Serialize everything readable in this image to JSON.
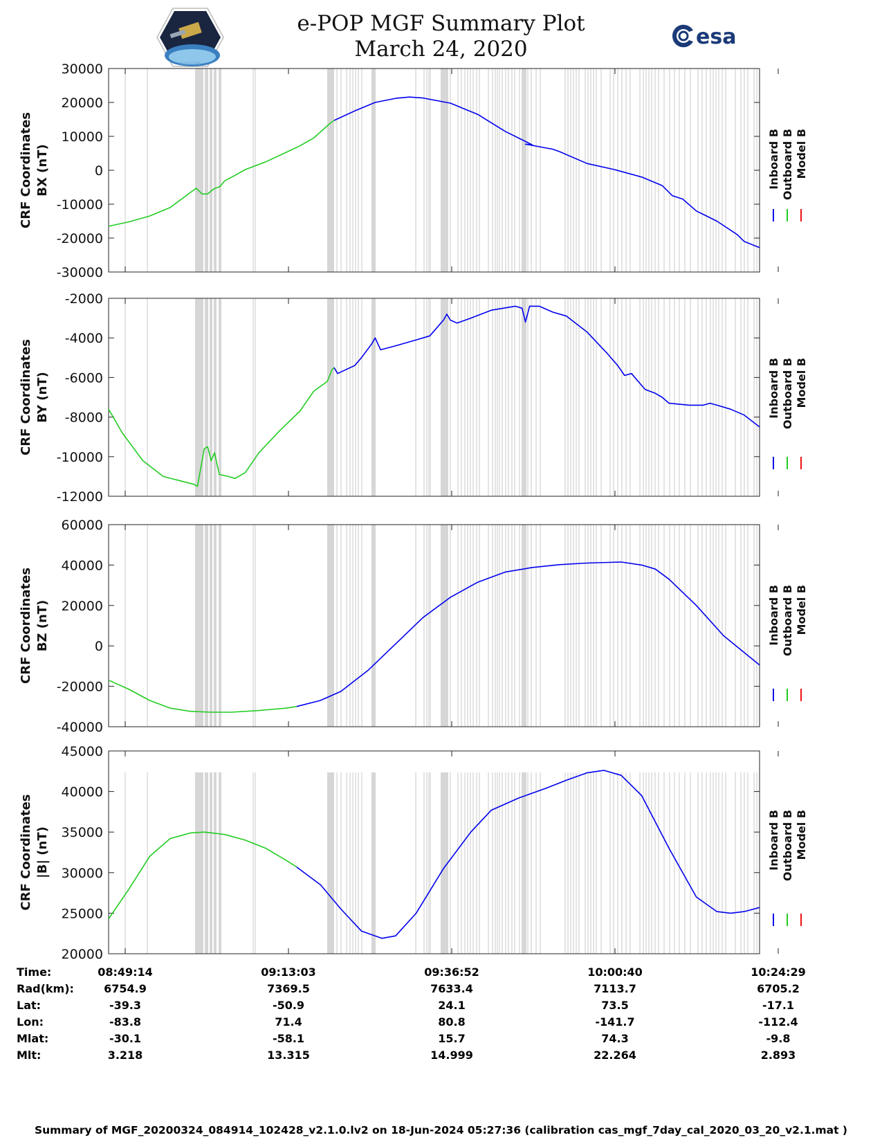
{
  "header": {
    "title_line1": "e-POP MGF Summary Plot",
    "title_line2": "March 24, 2020",
    "left_logo_caption": "CASSIOPE",
    "right_logo_text": "esa"
  },
  "legend": {
    "entries": [
      {
        "name": "Inboard B",
        "color": "#0000ee"
      },
      {
        "name": "Outboard B",
        "color": "#22cc22"
      },
      {
        "name": "Model B",
        "color": "#ee1111"
      }
    ]
  },
  "chart_data": [
    {
      "type": "line",
      "ylabel_line1": "CRF Coordinates",
      "ylabel_line2": "BX (nT)",
      "ylim": [
        -30000,
        30000
      ],
      "yticks": [
        -30000,
        -20000,
        -10000,
        0,
        10000,
        20000,
        30000
      ],
      "ytick_labels": [
        "-30000",
        "-20000",
        "-10000",
        "0",
        "10000",
        "20000",
        "30000"
      ],
      "xlim_minutes": [
        0,
        95.25
      ],
      "series": [
        {
          "name": "Outboard B",
          "color": "#22cc22",
          "points": [
            [
              0,
              -16500
            ],
            [
              3,
              -15200
            ],
            [
              6,
              -13500
            ],
            [
              9,
              -11000
            ],
            [
              12.8,
              -5300
            ],
            [
              13.7,
              -7000
            ],
            [
              14.5,
              -7000
            ],
            [
              15.4,
              -5500
            ],
            [
              16.3,
              -4800
            ],
            [
              17,
              -3100
            ],
            [
              18.5,
              -1500
            ],
            [
              20,
              200
            ],
            [
              23,
              2500
            ],
            [
              26,
              5300
            ],
            [
              28,
              7200
            ],
            [
              30,
              9500
            ],
            [
              32.5,
              14000
            ],
            [
              33,
              14700
            ]
          ]
        },
        {
          "name": "Inboard B",
          "color": "#0000ee",
          "points": [
            [
              33,
              14700
            ],
            [
              36,
              17500
            ],
            [
              39,
              20000
            ],
            [
              42,
              21200
            ],
            [
              44,
              21600
            ],
            [
              46,
              21300
            ],
            [
              50,
              19800
            ],
            [
              54,
              16500
            ],
            [
              58,
              11500
            ],
            [
              62,
              7500
            ],
            [
              61,
              7700
            ],
            [
              65,
              6200
            ],
            [
              66,
              5500
            ],
            [
              70,
              2000
            ],
            [
              74,
              200
            ],
            [
              78,
              -2000
            ],
            [
              81,
              -4500
            ],
            [
              82.5,
              -7500
            ],
            [
              84,
              -8500
            ],
            [
              86,
              -12000
            ],
            [
              89,
              -15000
            ],
            [
              92,
              -19000
            ],
            [
              93,
              -21000
            ],
            [
              95.25,
              -22800
            ]
          ]
        }
      ]
    },
    {
      "type": "line",
      "ylabel_line1": "CRF Coordinates",
      "ylabel_line2": "BY (nT)",
      "ylim": [
        -12000,
        -2000
      ],
      "yticks": [
        -12000,
        -10000,
        -8000,
        -6000,
        -4000,
        -2000
      ],
      "ytick_labels": [
        "-12000",
        "-10000",
        "-8000",
        "-6000",
        "-4000",
        "-2000"
      ],
      "xlim_minutes": [
        0,
        95.25
      ],
      "series": [
        {
          "name": "Outboard B",
          "color": "#22cc22",
          "points": [
            [
              0,
              -7600
            ],
            [
              2,
              -8800
            ],
            [
              5,
              -10200
            ],
            [
              8,
              -11000
            ],
            [
              12.5,
              -11400
            ],
            [
              13,
              -11500
            ],
            [
              14,
              -9600
            ],
            [
              14.5,
              -9500
            ],
            [
              15,
              -10200
            ],
            [
              15.5,
              -9800
            ],
            [
              16.2,
              -10900
            ],
            [
              17.5,
              -11000
            ],
            [
              18.5,
              -11100
            ],
            [
              20,
              -10800
            ],
            [
              22,
              -9800
            ],
            [
              25,
              -8700
            ],
            [
              28,
              -7700
            ],
            [
              30,
              -6700
            ],
            [
              32,
              -6200
            ],
            [
              32.7,
              -5600
            ],
            [
              33,
              -5500
            ]
          ]
        },
        {
          "name": "Inboard B",
          "color": "#0000ee",
          "points": [
            [
              33,
              -5500
            ],
            [
              33.5,
              -5800
            ],
            [
              36,
              -5400
            ],
            [
              37,
              -5000
            ],
            [
              38.5,
              -4300
            ],
            [
              39,
              -4000
            ],
            [
              39.8,
              -4600
            ],
            [
              42,
              -4400
            ],
            [
              45,
              -4100
            ],
            [
              47,
              -3900
            ],
            [
              49,
              -3100
            ],
            [
              49.5,
              -2800
            ],
            [
              50,
              -3100
            ],
            [
              51,
              -3250
            ],
            [
              53,
              -3000
            ],
            [
              56,
              -2600
            ],
            [
              59.5,
              -2400
            ],
            [
              60.5,
              -2500
            ],
            [
              61,
              -3200
            ],
            [
              61.6,
              -2400
            ],
            [
              63,
              -2400
            ],
            [
              65,
              -2700
            ],
            [
              67,
              -2900
            ],
            [
              70,
              -3700
            ],
            [
              73,
              -4800
            ],
            [
              74.5,
              -5400
            ],
            [
              75.5,
              -5900
            ],
            [
              76.5,
              -5800
            ],
            [
              78.5,
              -6600
            ],
            [
              80,
              -6800
            ],
            [
              81,
              -7000
            ],
            [
              82,
              -7300
            ],
            [
              85,
              -7400
            ],
            [
              87,
              -7400
            ],
            [
              88,
              -7300
            ],
            [
              89,
              -7400
            ],
            [
              91,
              -7600
            ],
            [
              93,
              -7900
            ],
            [
              95.25,
              -8500
            ]
          ]
        }
      ]
    },
    {
      "type": "line",
      "ylabel_line1": "CRF Coordinates",
      "ylabel_line2": "BZ (nT)",
      "ylim": [
        -40000,
        60000
      ],
      "yticks": [
        -40000,
        -20000,
        0,
        20000,
        40000,
        60000
      ],
      "ytick_labels": [
        "-40000",
        "-20000",
        "0",
        "20000",
        "40000",
        "60000"
      ],
      "xlim_minutes": [
        0,
        95.25
      ],
      "series": [
        {
          "name": "Outboard B",
          "color": "#22cc22",
          "points": [
            [
              0,
              -17000
            ],
            [
              3,
              -21500
            ],
            [
              6,
              -27000
            ],
            [
              9,
              -30800
            ],
            [
              12,
              -32400
            ],
            [
              15,
              -32800
            ],
            [
              18,
              -32800
            ],
            [
              22,
              -32000
            ],
            [
              26,
              -30800
            ],
            [
              27.5,
              -30000
            ]
          ]
        },
        {
          "name": "Inboard B",
          "color": "#0000ee",
          "points": [
            [
              27.5,
              -30000
            ],
            [
              31,
              -27000
            ],
            [
              34,
              -22500
            ],
            [
              38,
              -12000
            ],
            [
              42,
              1000
            ],
            [
              46,
              14000
            ],
            [
              50,
              24000
            ],
            [
              54,
              31500
            ],
            [
              58,
              36500
            ],
            [
              62,
              38800
            ],
            [
              66,
              40200
            ],
            [
              70,
              41000
            ],
            [
              75,
              41500
            ],
            [
              78,
              40000
            ],
            [
              80,
              38000
            ],
            [
              82,
              33000
            ],
            [
              86,
              20000
            ],
            [
              90,
              5000
            ],
            [
              95.25,
              -9500
            ]
          ]
        }
      ]
    },
    {
      "type": "line",
      "ylabel_line1": "CRF Coordinates",
      "ylabel_line2": "|B| (nT)",
      "ylim": [
        20000,
        45000
      ],
      "yticks": [
        20000,
        25000,
        30000,
        35000,
        40000,
        45000
      ],
      "ytick_labels": [
        "20000",
        "25000",
        "30000",
        "35000",
        "40000",
        "45000"
      ],
      "xlim_minutes": [
        0,
        95.25
      ],
      "series": [
        {
          "name": "Outboard B",
          "color": "#22cc22",
          "points": [
            [
              0,
              24300
            ],
            [
              3,
              28000
            ],
            [
              6,
              32000
            ],
            [
              9,
              34200
            ],
            [
              12,
              34900
            ],
            [
              14,
              35000
            ],
            [
              17,
              34700
            ],
            [
              20,
              34000
            ],
            [
              23,
              33000
            ],
            [
              26,
              31500
            ],
            [
              27.5,
              30700
            ]
          ]
        },
        {
          "name": "Inboard B",
          "color": "#0000ee",
          "points": [
            [
              27.5,
              30700
            ],
            [
              31,
              28500
            ],
            [
              34,
              25500
            ],
            [
              37,
              22800
            ],
            [
              40,
              21900
            ],
            [
              42,
              22200
            ],
            [
              45,
              25000
            ],
            [
              49,
              30500
            ],
            [
              53,
              35000
            ],
            [
              56,
              37700
            ],
            [
              60,
              39200
            ],
            [
              64,
              40400
            ],
            [
              67,
              41400
            ],
            [
              70,
              42300
            ],
            [
              72.5,
              42600
            ],
            [
              75,
              42000
            ],
            [
              78,
              39500
            ],
            [
              82,
              33000
            ],
            [
              86,
              27000
            ],
            [
              89,
              25200
            ],
            [
              91,
              25000
            ],
            [
              93,
              25200
            ],
            [
              95.25,
              25700
            ]
          ]
        }
      ]
    }
  ],
  "time_axis": {
    "rows": [
      {
        "label": "Time:",
        "values": [
          "08:49:14",
          "09:13:03",
          "09:36:52",
          "10:00:40",
          "10:24:29"
        ]
      },
      {
        "label": "Rad(km):",
        "values": [
          "6754.9",
          "7369.5",
          "7633.4",
          "7113.7",
          "6705.2"
        ]
      },
      {
        "label": "Lat:",
        "values": [
          "-39.3",
          "-50.9",
          "24.1",
          "73.5",
          "-17.1"
        ]
      },
      {
        "label": "Lon:",
        "values": [
          "-83.8",
          "71.4",
          "80.8",
          "-141.7",
          "-112.4"
        ]
      },
      {
        "label": "Mlat:",
        "values": [
          "-30.1",
          "-58.1",
          "15.7",
          "74.3",
          "-9.8"
        ]
      },
      {
        "label": "Mlt:",
        "values": [
          "3.218",
          "13.315",
          "14.999",
          "22.264",
          "2.893"
        ]
      }
    ]
  },
  "footer": {
    "text": "Summary of MGF_20200324_084914_102428_v2.1.0.lv2 on 18-Jun-2024 05:27:36 (calibration cas_mgf_7day_cal_2020_03_20_v2.1.mat )"
  }
}
